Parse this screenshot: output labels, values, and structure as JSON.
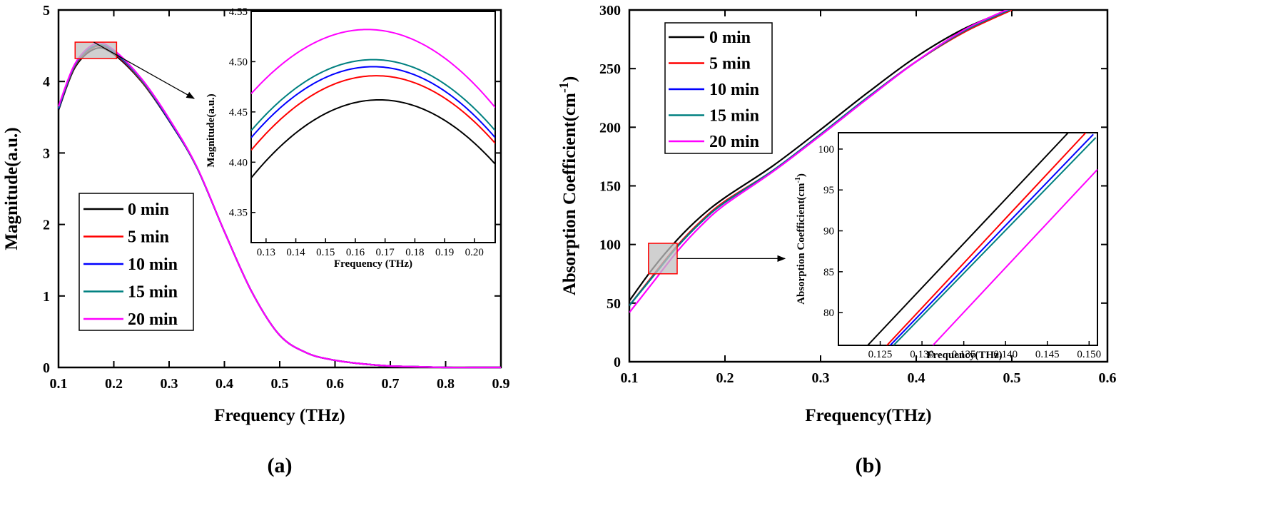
{
  "colors": {
    "0 min": "#000000",
    "5 min": "#ff0000",
    "10 min": "#0000ff",
    "15 min": "#008080",
    "20 min": "#ff00ff",
    "zoom_box_fill": "#c0c0c0",
    "zoom_box_stroke": "#ff0000"
  },
  "chart_data": [
    {
      "panel_label": "(a)",
      "type": "line",
      "xlabel": "Frequency (THz)",
      "ylabel": "Magnitude(a.u.)",
      "xlim": [
        0.1,
        0.9
      ],
      "ylim": [
        0,
        5
      ],
      "xticks": [
        "0.1",
        "0.2",
        "0.3",
        "0.4",
        "0.5",
        "0.6",
        "0.7",
        "0.8",
        "0.9"
      ],
      "yticks": [
        "0",
        "1",
        "2",
        "3",
        "4",
        "5"
      ],
      "grid": false,
      "legend_position": "lower-left",
      "legend": [
        "0 min",
        "5 min",
        "10 min",
        "15 min",
        "20 min"
      ],
      "series": [
        {
          "name": "0 min",
          "x": [
            0.1,
            0.13,
            0.167,
            0.2,
            0.25,
            0.3,
            0.35,
            0.4,
            0.45,
            0.5,
            0.55,
            0.6,
            0.65,
            0.7,
            0.75,
            0.8,
            0.85,
            0.9
          ],
          "y": [
            3.6,
            4.2,
            4.46,
            4.38,
            4.0,
            3.45,
            2.8,
            1.9,
            1.05,
            0.45,
            0.2,
            0.1,
            0.05,
            0.02,
            0.01,
            0.0,
            0.0,
            0.0
          ]
        },
        {
          "name": "5 min",
          "x": [
            0.1,
            0.13,
            0.167,
            0.2,
            0.25,
            0.3,
            0.35,
            0.4,
            0.45,
            0.5,
            0.55,
            0.6,
            0.65,
            0.7,
            0.75,
            0.8,
            0.85,
            0.9
          ],
          "y": [
            3.62,
            4.22,
            4.49,
            4.4,
            4.01,
            3.46,
            2.8,
            1.9,
            1.05,
            0.45,
            0.2,
            0.1,
            0.05,
            0.02,
            0.01,
            0.0,
            0.0,
            0.0
          ]
        },
        {
          "name": "10 min",
          "x": [
            0.1,
            0.13,
            0.167,
            0.2,
            0.25,
            0.3,
            0.35,
            0.4,
            0.45,
            0.5,
            0.55,
            0.6,
            0.65,
            0.7,
            0.75,
            0.8,
            0.85,
            0.9
          ],
          "y": [
            3.62,
            4.23,
            4.5,
            4.41,
            4.02,
            3.46,
            2.8,
            1.9,
            1.05,
            0.45,
            0.2,
            0.1,
            0.05,
            0.02,
            0.01,
            0.0,
            0.0,
            0.0
          ]
        },
        {
          "name": "15 min",
          "x": [
            0.1,
            0.13,
            0.167,
            0.2,
            0.25,
            0.3,
            0.35,
            0.4,
            0.45,
            0.5,
            0.55,
            0.6,
            0.65,
            0.7,
            0.75,
            0.8,
            0.85,
            0.9
          ],
          "y": [
            3.63,
            4.23,
            4.5,
            4.42,
            4.02,
            3.47,
            2.8,
            1.9,
            1.05,
            0.45,
            0.2,
            0.1,
            0.05,
            0.02,
            0.01,
            0.0,
            0.0,
            0.0
          ]
        },
        {
          "name": "20 min",
          "x": [
            0.1,
            0.13,
            0.167,
            0.2,
            0.25,
            0.3,
            0.35,
            0.4,
            0.45,
            0.5,
            0.55,
            0.6,
            0.65,
            0.7,
            0.75,
            0.8,
            0.85,
            0.9
          ],
          "y": [
            3.65,
            4.25,
            4.53,
            4.44,
            4.04,
            3.48,
            2.81,
            1.9,
            1.05,
            0.45,
            0.2,
            0.1,
            0.05,
            0.02,
            0.01,
            0.0,
            0.0,
            0.0
          ]
        }
      ],
      "zoom_region": {
        "x": [
          0.13,
          0.205
        ],
        "y": [
          4.32,
          4.55
        ]
      },
      "inset": {
        "xlabel": "Frequency (THz)",
        "ylabel": "Magnitude(a.u.)",
        "xlim": [
          0.125,
          0.207
        ],
        "ylim": [
          4.32,
          4.55
        ],
        "xticks": [
          "0.13",
          "0.14",
          "0.15",
          "0.16",
          "0.17",
          "0.18",
          "0.19",
          "0.20"
        ],
        "yticks": [
          "4.35",
          "4.40",
          "4.45",
          "4.50",
          "4.55"
        ],
        "series": [
          {
            "name": "0 min",
            "peak_x": 0.168,
            "peak_y": 4.462
          },
          {
            "name": "5 min",
            "peak_x": 0.167,
            "peak_y": 4.486
          },
          {
            "name": "10 min",
            "peak_x": 0.166,
            "peak_y": 4.495
          },
          {
            "name": "15 min",
            "peak_x": 0.166,
            "peak_y": 4.502
          },
          {
            "name": "20 min",
            "peak_x": 0.164,
            "peak_y": 4.532
          }
        ]
      }
    },
    {
      "panel_label": "(b)",
      "type": "line",
      "xlabel": "Frequency(THz)",
      "ylabel": "Absorption Coefficient(cm",
      "ylabel_sup": "-1",
      "ylabel_end": ")",
      "xlim": [
        0.1,
        0.6
      ],
      "ylim": [
        0,
        300
      ],
      "xticks": [
        "0.1",
        "0.2",
        "0.3",
        "0.4",
        "0.5",
        "0.6"
      ],
      "yticks": [
        "0",
        "50",
        "100",
        "150",
        "200",
        "250",
        "300"
      ],
      "grid": false,
      "legend_position": "upper-left",
      "legend": [
        "0 min",
        "5 min",
        "10 min",
        "15 min",
        "20 min"
      ],
      "series": [
        {
          "name": "0 min",
          "x": [
            0.1,
            0.125,
            0.15,
            0.175,
            0.2,
            0.25,
            0.3,
            0.35,
            0.4,
            0.45,
            0.5
          ],
          "y": [
            52,
            80,
            104,
            124,
            140,
            167,
            198,
            230,
            260,
            284,
            301
          ]
        },
        {
          "name": "5 min",
          "x": [
            0.1,
            0.125,
            0.15,
            0.175,
            0.2,
            0.25,
            0.3,
            0.35,
            0.4,
            0.45,
            0.5
          ],
          "y": [
            48,
            74,
            99,
            120,
            137,
            163,
            194,
            226,
            256,
            281,
            300
          ]
        },
        {
          "name": "10 min",
          "x": [
            0.1,
            0.125,
            0.15,
            0.175,
            0.2,
            0.25,
            0.3,
            0.35,
            0.4,
            0.45,
            0.5
          ],
          "y": [
            48,
            73,
            98,
            119,
            136,
            163,
            194,
            226,
            256,
            282,
            301
          ]
        },
        {
          "name": "15 min",
          "x": [
            0.1,
            0.125,
            0.15,
            0.175,
            0.2,
            0.25,
            0.3,
            0.35,
            0.4,
            0.45,
            0.5
          ],
          "y": [
            48,
            73,
            98,
            119,
            136,
            163,
            194,
            226,
            256,
            282,
            301
          ]
        },
        {
          "name": "20 min",
          "x": [
            0.1,
            0.125,
            0.15,
            0.175,
            0.2,
            0.25,
            0.3,
            0.35,
            0.4,
            0.45,
            0.5
          ],
          "y": [
            42,
            68,
            94,
            116,
            134,
            162,
            193,
            225,
            256,
            283,
            302
          ]
        }
      ],
      "zoom_region": {
        "x": [
          0.12,
          0.15
        ],
        "y": [
          75,
          101
        ]
      },
      "inset": {
        "xlabel": "Frequency(THz)",
        "ylabel": "Absorption Coefficient(cm",
        "ylabel_sup": "-1",
        "ylabel_end": ")",
        "xlim": [
          0.12,
          0.151
        ],
        "ylim": [
          76,
          102
        ],
        "xticks": [
          "0.125",
          "0.130",
          "0.135",
          "0.140",
          "0.145",
          "0.150"
        ],
        "yticks": [
          "80",
          "85",
          "90",
          "95",
          "100"
        ],
        "series": [
          {
            "name": "0 min",
            "x": [
              0.1235,
              0.1475
            ],
            "y": [
              76,
              102
            ]
          },
          {
            "name": "5 min",
            "x": [
              0.1258,
              0.1496
            ],
            "y": [
              76,
              102
            ]
          },
          {
            "name": "10 min",
            "x": [
              0.1262,
              0.1505
            ],
            "y": [
              76,
              101.8
            ]
          },
          {
            "name": "15 min",
            "x": [
              0.1266,
              0.1508
            ],
            "y": [
              76,
              101.4
            ]
          },
          {
            "name": "20 min",
            "x": [
              0.1313,
              0.151
            ],
            "y": [
              76,
              97.5
            ]
          }
        ]
      }
    }
  ]
}
